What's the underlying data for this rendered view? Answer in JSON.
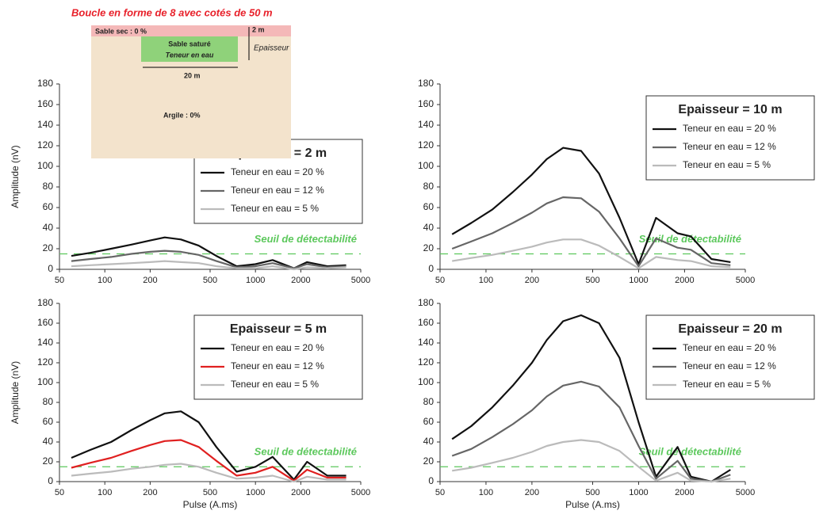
{
  "diagram": {
    "title": "Boucle en forme de 8 avec cotés de 50 m",
    "top_layer": "Sable sec : 0 %",
    "top_thickness": "2 m",
    "layer_name": "Sable saturé",
    "layer_property": "Teneur en eau",
    "thickness_label": "Epaisseur",
    "width_label": "20 m",
    "bottom_layer": "Argile : 0%"
  },
  "chart_data": [
    {
      "type": "line",
      "legend_title": "Epaisseur = 2 m",
      "ylabel": "Amplitude (nV)",
      "legend": "center right",
      "log_x": true,
      "x": [
        60,
        80,
        110,
        150,
        200,
        250,
        320,
        420,
        550,
        750,
        1000,
        1300,
        1800,
        2200,
        3000,
        4000
      ],
      "xlim": [
        50,
        5000
      ],
      "xticks": [
        50,
        100,
        200,
        500,
        1000,
        2000,
        5000
      ],
      "ylim": [
        0,
        180
      ],
      "yticks": [
        0,
        20,
        40,
        60,
        80,
        100,
        120,
        140,
        160,
        180
      ],
      "threshold": {
        "value": 15,
        "label": "Seuil de détectabilité",
        "color": "#5cc85c"
      },
      "series": [
        {
          "name": "Teneur en eau = 20 %",
          "color": "#111111",
          "values": [
            13,
            16,
            20,
            24,
            28,
            31,
            29,
            23,
            13,
            3,
            5,
            9,
            1,
            7,
            3,
            4
          ]
        },
        {
          "name": "Teneur en eau = 12 %",
          "color": "#666666",
          "values": [
            8,
            10,
            12,
            15,
            17,
            18,
            17,
            14,
            8,
            2,
            3,
            6,
            1,
            5,
            2,
            3
          ]
        },
        {
          "name": "Teneur en eau = 5 %",
          "color": "#bbbbbb",
          "values": [
            3,
            4,
            5,
            6,
            7,
            8,
            7,
            6,
            3,
            1,
            1,
            3,
            0,
            2,
            1,
            2
          ]
        }
      ]
    },
    {
      "type": "line",
      "legend_title": "Epaisseur = 10 m",
      "legend": "upper right",
      "log_x": true,
      "x": [
        60,
        80,
        110,
        150,
        200,
        250,
        320,
        420,
        550,
        750,
        1000,
        1300,
        1800,
        2200,
        3000,
        4000
      ],
      "xlim": [
        50,
        5000
      ],
      "xticks": [
        50,
        100,
        200,
        500,
        1000,
        2000,
        5000
      ],
      "ylim": [
        0,
        180
      ],
      "yticks": [
        0,
        20,
        40,
        60,
        80,
        100,
        120,
        140,
        160,
        180
      ],
      "threshold": {
        "value": 15,
        "label": "Seuil de détectabilité",
        "color": "#5cc85c"
      },
      "series": [
        {
          "name": "Teneur en eau = 20 %",
          "color": "#111111",
          "values": [
            34,
            45,
            58,
            75,
            92,
            107,
            118,
            115,
            93,
            50,
            5,
            50,
            35,
            32,
            10,
            7
          ]
        },
        {
          "name": "Teneur en eau = 12 %",
          "color": "#666666",
          "values": [
            20,
            27,
            35,
            45,
            55,
            64,
            70,
            69,
            56,
            30,
            3,
            30,
            21,
            19,
            6,
            4
          ]
        },
        {
          "name": "Teneur en eau = 5 %",
          "color": "#bbbbbb",
          "values": [
            8,
            11,
            14,
            18,
            22,
            26,
            29,
            29,
            23,
            12,
            1,
            12,
            9,
            8,
            3,
            2
          ]
        }
      ]
    },
    {
      "type": "line",
      "legend_title": "Epaisseur = 5 m",
      "ylabel": "Amplitude (nV)",
      "xlabel": "Pulse (A.ms)",
      "legend": "upper right",
      "log_x": true,
      "x": [
        60,
        80,
        110,
        150,
        200,
        250,
        320,
        420,
        550,
        750,
        1000,
        1300,
        1800,
        2200,
        3000,
        4000
      ],
      "xlim": [
        50,
        5000
      ],
      "xticks": [
        50,
        100,
        200,
        500,
        1000,
        2000,
        5000
      ],
      "ylim": [
        0,
        180
      ],
      "yticks": [
        0,
        20,
        40,
        60,
        80,
        100,
        120,
        140,
        160,
        180
      ],
      "threshold": {
        "value": 15,
        "label": "Seuil de détectabilité",
        "color": "#5cc85c"
      },
      "series": [
        {
          "name": "Teneur en eau = 20 %",
          "color": "#111111",
          "values": [
            24,
            32,
            40,
            52,
            62,
            69,
            71,
            60,
            35,
            10,
            15,
            25,
            2,
            20,
            6,
            6
          ]
        },
        {
          "name": "Teneur en eau = 12 %",
          "color": "#e02020",
          "values": [
            14,
            19,
            24,
            31,
            37,
            41,
            42,
            35,
            21,
            6,
            9,
            15,
            1,
            12,
            4,
            4
          ]
        },
        {
          "name": "Teneur en eau = 5 %",
          "color": "#bbbbbb",
          "values": [
            6,
            8,
            10,
            13,
            15,
            17,
            18,
            15,
            9,
            3,
            4,
            6,
            0,
            5,
            2,
            2
          ]
        }
      ]
    },
    {
      "type": "line",
      "legend_title": "Epaisseur = 20 m",
      "xlabel": "Pulse (A.ms)",
      "legend": "upper right",
      "log_x": true,
      "x": [
        60,
        80,
        110,
        150,
        200,
        250,
        320,
        420,
        550,
        750,
        1000,
        1300,
        1800,
        2200,
        3000,
        4000
      ],
      "xlim": [
        50,
        5000
      ],
      "xticks": [
        50,
        100,
        200,
        500,
        1000,
        2000,
        5000
      ],
      "ylim": [
        0,
        180
      ],
      "yticks": [
        0,
        20,
        40,
        60,
        80,
        100,
        120,
        140,
        160,
        180
      ],
      "threshold": {
        "value": 15,
        "label": "Seuil de détectabilité",
        "color": "#5cc85c"
      },
      "series": [
        {
          "name": "Teneur en eau = 20 %",
          "color": "#111111",
          "values": [
            43,
            56,
            75,
            97,
            120,
            143,
            162,
            168,
            160,
            125,
            60,
            5,
            35,
            5,
            0,
            12
          ]
        },
        {
          "name": "Teneur en eau = 12 %",
          "color": "#666666",
          "values": [
            26,
            33,
            45,
            58,
            72,
            86,
            97,
            101,
            96,
            75,
            36,
            3,
            21,
            3,
            0,
            7
          ]
        },
        {
          "name": "Teneur en eau = 5 %",
          "color": "#bbbbbb",
          "values": [
            11,
            14,
            19,
            24,
            30,
            36,
            40,
            42,
            40,
            31,
            15,
            1,
            9,
            1,
            0,
            3
          ]
        }
      ]
    }
  ]
}
